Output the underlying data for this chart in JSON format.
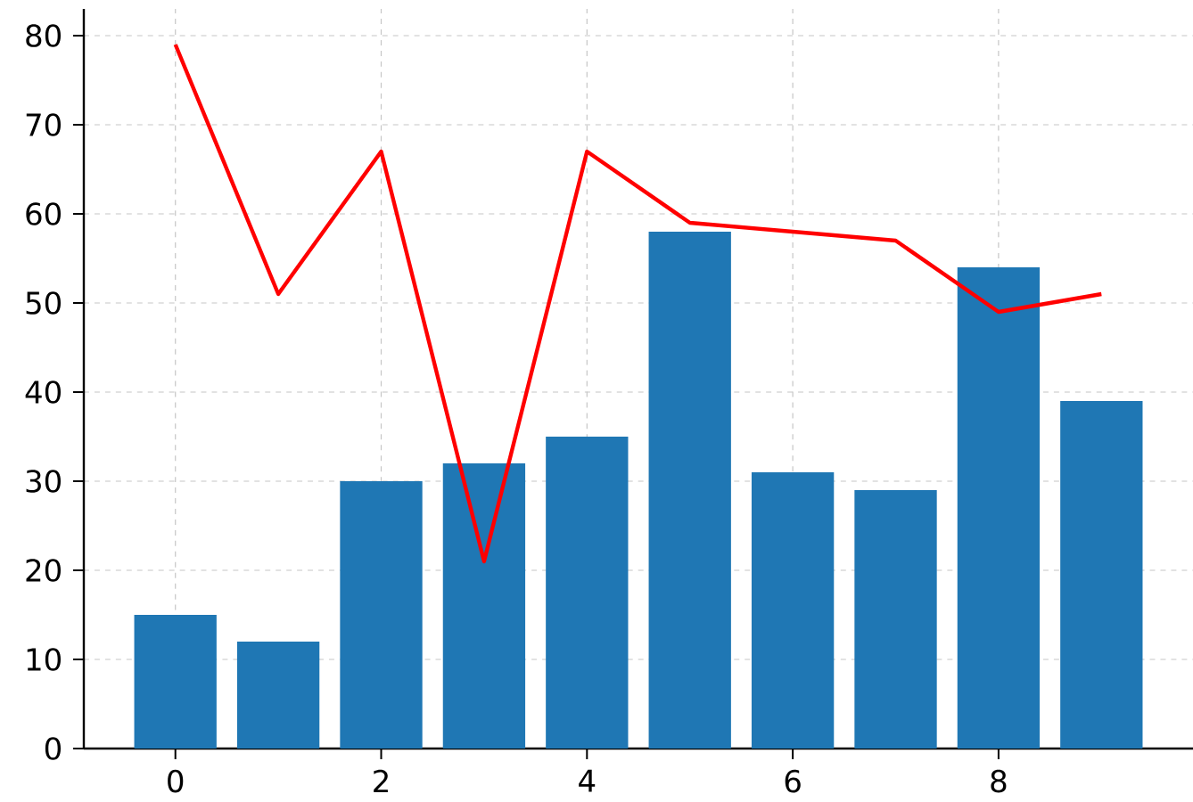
{
  "chart_data": {
    "type": "bar",
    "x": [
      0,
      1,
      2,
      3,
      4,
      5,
      6,
      7,
      8,
      9
    ],
    "series": [
      {
        "color": "#1f77b4",
        "values": [
          15,
          12,
          30,
          32,
          35,
          58,
          31,
          29,
          54,
          39
        ]
      },
      {
        "type": "line",
        "color": "#ff0000",
        "values": [
          79,
          51,
          67,
          21,
          67,
          59,
          58,
          57,
          49,
          51
        ]
      }
    ],
    "xlim": [
      -0.89,
      9.89
    ],
    "ylim": [
      0,
      83
    ],
    "xticks": [
      0,
      2,
      4,
      6,
      8
    ],
    "yticks": [
      0,
      10,
      20,
      30,
      40,
      50,
      60,
      70,
      80
    ],
    "grid": true,
    "line_style": "solid",
    "marker": "none"
  }
}
